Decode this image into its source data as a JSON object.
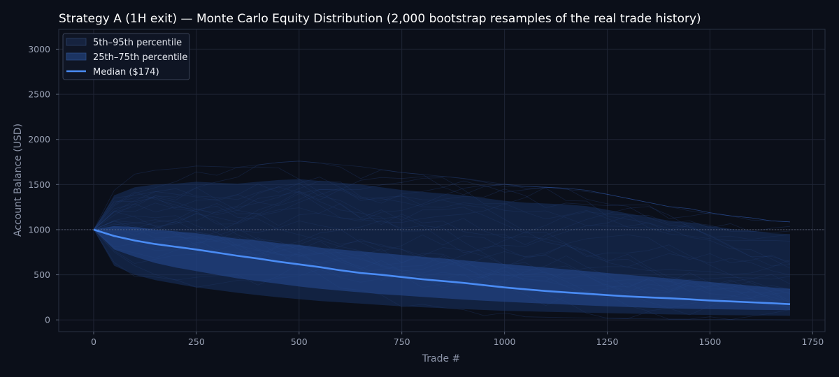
{
  "chart_data": {
    "type": "area",
    "title": "Strategy A (1H exit) — Monte Carlo Equity Distribution (2,000 bootstrap resamples of the real trade history)",
    "xlabel": "Trade #",
    "ylabel": "Account Balance (USD)",
    "xlim": [
      -85,
      1780
    ],
    "ylim": [
      -130,
      3220
    ],
    "xticks": [
      0,
      250,
      500,
      750,
      1000,
      1250,
      1500,
      1750
    ],
    "yticks": [
      0,
      500,
      1000,
      1500,
      2000,
      2500,
      3000
    ],
    "reference_line": 1000,
    "grid": true,
    "legend_position": "top-left",
    "x": [
      0,
      50,
      100,
      150,
      200,
      250,
      300,
      350,
      400,
      450,
      500,
      550,
      600,
      650,
      700,
      750,
      800,
      850,
      900,
      950,
      1000,
      1050,
      1100,
      1150,
      1200,
      1250,
      1300,
      1350,
      1400,
      1450,
      1500,
      1550,
      1600,
      1650,
      1695
    ],
    "series": [
      {
        "name": "5th–95th percentile",
        "kind": "band",
        "lower": [
          1000,
          600,
          500,
          440,
          400,
          360,
          330,
          300,
          275,
          250,
          230,
          210,
          195,
          180,
          165,
          150,
          140,
          130,
          120,
          110,
          100,
          95,
          90,
          85,
          80,
          75,
          70,
          65,
          60,
          58,
          55,
          52,
          50,
          48,
          45
        ],
        "upper": [
          1000,
          1380,
          1470,
          1500,
          1510,
          1530,
          1520,
          1510,
          1530,
          1550,
          1560,
          1540,
          1520,
          1500,
          1470,
          1440,
          1420,
          1400,
          1380,
          1350,
          1320,
          1300,
          1290,
          1280,
          1260,
          1220,
          1180,
          1140,
          1100,
          1080,
          1040,
          1010,
          990,
          960,
          950
        ]
      },
      {
        "name": "25th–75th percentile",
        "kind": "band",
        "lower": [
          1000,
          780,
          700,
          630,
          580,
          540,
          500,
          460,
          430,
          400,
          370,
          345,
          325,
          305,
          285,
          270,
          255,
          240,
          225,
          212,
          200,
          190,
          180,
          170,
          160,
          150,
          142,
          135,
          128,
          122,
          118,
          115,
          112,
          110,
          108
        ],
        "upper": [
          1000,
          1040,
          1030,
          1000,
          980,
          960,
          930,
          900,
          880,
          850,
          830,
          800,
          780,
          760,
          740,
          720,
          700,
          680,
          660,
          640,
          620,
          600,
          580,
          560,
          540,
          520,
          500,
          480,
          460,
          440,
          420,
          400,
          380,
          360,
          345
        ]
      },
      {
        "name": "Median ($174)",
        "kind": "line",
        "values": [
          1000,
          930,
          880,
          840,
          810,
          780,
          745,
          710,
          680,
          645,
          615,
          585,
          550,
          520,
          500,
          475,
          450,
          430,
          410,
          385,
          360,
          340,
          320,
          305,
          290,
          275,
          260,
          250,
          240,
          228,
          215,
          205,
          195,
          185,
          174
        ]
      }
    ]
  }
}
